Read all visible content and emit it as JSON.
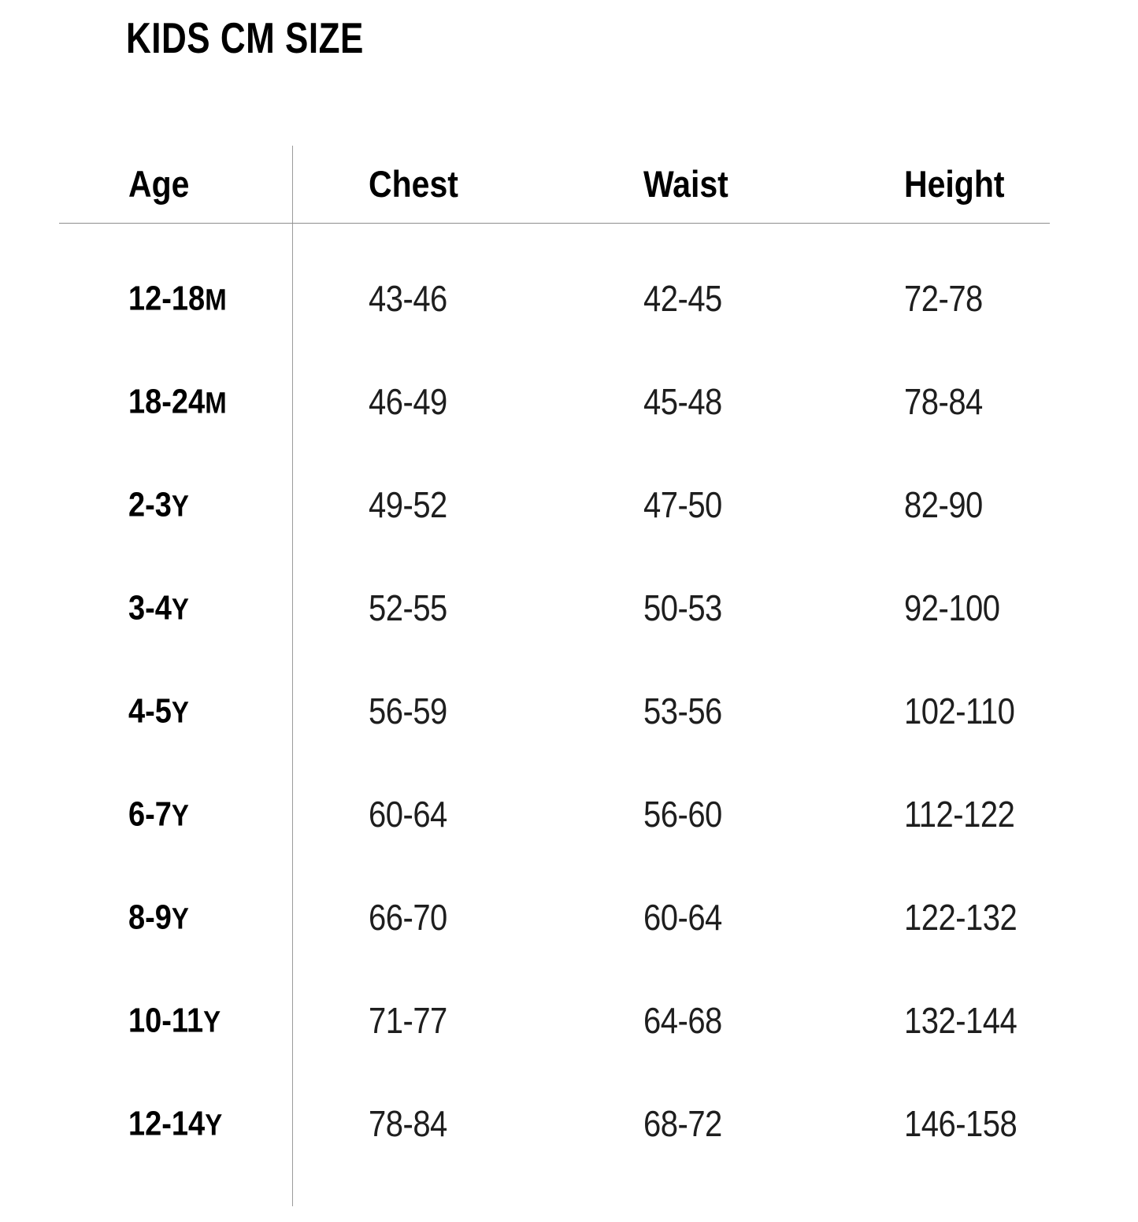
{
  "page": {
    "title": "KIDS CM SIZE"
  },
  "table": {
    "columns": [
      "Age",
      "Chest",
      "Waist",
      "Height"
    ],
    "rows": [
      {
        "age": "12-18",
        "suffix": "M",
        "chest": "43-46",
        "waist": "42-45",
        "height": "72-78"
      },
      {
        "age": "18-24",
        "suffix": "M",
        "chest": "46-49",
        "waist": "45-48",
        "height": "78-84"
      },
      {
        "age": "2-3",
        "suffix": "Y",
        "chest": "49-52",
        "waist": "47-50",
        "height": "82-90"
      },
      {
        "age": "3-4",
        "suffix": "Y",
        "chest": "52-55",
        "waist": "50-53",
        "height": "92-100"
      },
      {
        "age": "4-5",
        "suffix": "Y",
        "chest": "56-59",
        "waist": "53-56",
        "height": "102-110"
      },
      {
        "age": "6-7",
        "suffix": "Y",
        "chest": "60-64",
        "waist": "56-60",
        "height": "112-122"
      },
      {
        "age": "8-9",
        "suffix": "Y",
        "chest": "66-70",
        "waist": "60-64",
        "height": "122-132"
      },
      {
        "age": "10-11",
        "suffix": "Y",
        "chest": "71-77",
        "waist": "64-68",
        "height": "132-144"
      },
      {
        "age": "12-14",
        "suffix": "Y",
        "chest": "78-84",
        "waist": "68-72",
        "height": "146-158"
      }
    ]
  }
}
